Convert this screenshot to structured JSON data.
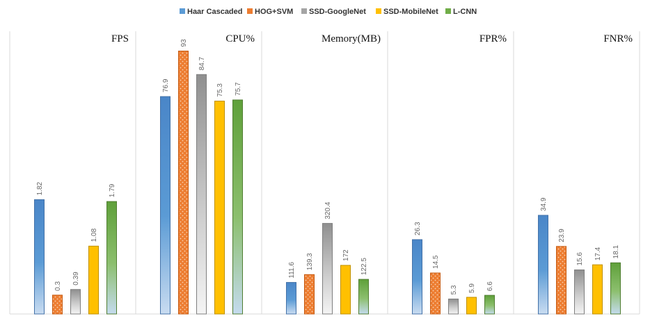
{
  "chart_data": {
    "type": "bar",
    "layout": "small-multiples",
    "legend_position": "top",
    "grid": false,
    "series_names": [
      "Haar Cascaded",
      "HOG+SVM",
      "SSD-GoogleNet",
      "SSD-MobileNet",
      "L-CNN"
    ],
    "series_colors": [
      "#5b9bd5",
      "#ed7d31",
      "#a5a5a5",
      "#ffc000",
      "#70ad47"
    ],
    "panels": [
      {
        "title": "FPS",
        "values": [
          1.82,
          0.3,
          0.39,
          1.08,
          1.79
        ],
        "labels": [
          "1.82",
          "0.3",
          "0.39",
          "1.08",
          "1.79"
        ],
        "ylim": [
          0,
          4.5
        ]
      },
      {
        "title": "CPU%",
        "values": [
          76.9,
          93,
          84.7,
          75.3,
          75.7
        ],
        "labels": [
          "76.9",
          "93",
          "84.7",
          "75.3",
          "75.7"
        ],
        "ylim": [
          0,
          100
        ]
      },
      {
        "title": "Memory(MB)",
        "values": [
          111.6,
          139.3,
          320.4,
          172,
          122.5
        ],
        "labels": [
          "111.6",
          "139.3",
          "320.4",
          "172",
          "122.5"
        ],
        "ylim": [
          0,
          1000
        ]
      },
      {
        "title": "FPR%",
        "values": [
          26.3,
          14.5,
          5.3,
          5.9,
          6.6
        ],
        "labels": [
          "26.3",
          "14.5",
          "5.3",
          "5.9",
          "6.6"
        ],
        "ylim": [
          0,
          100
        ]
      },
      {
        "title": "FNR%",
        "values": [
          34.9,
          23.9,
          15.6,
          17.4,
          18.1
        ],
        "labels": [
          "34.9",
          "23.9",
          "15.6",
          "17.4",
          "18.1"
        ],
        "ylim": [
          0,
          100
        ]
      }
    ]
  }
}
